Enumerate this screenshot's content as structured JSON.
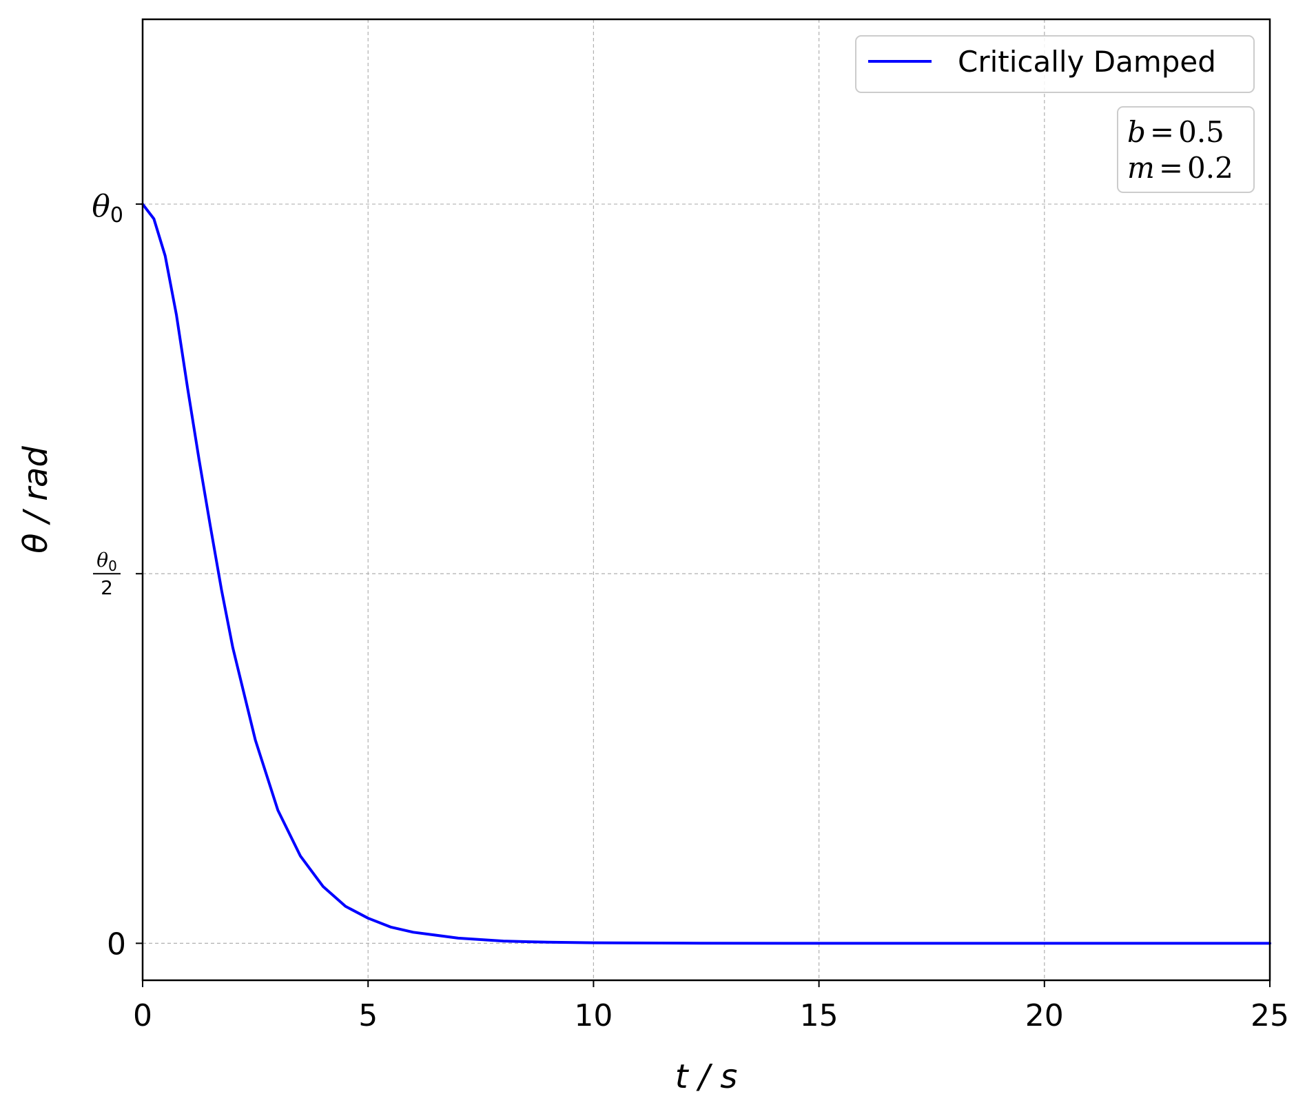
{
  "chart_data": {
    "type": "line",
    "xlabel": "t / s",
    "ylabel": "θ / rad",
    "xlim": [
      0,
      25
    ],
    "ylim": [
      -0.05,
      1.25
    ],
    "x_ticks": [
      "0",
      "5",
      "10",
      "15",
      "20",
      "25"
    ],
    "y_ticks": [
      {
        "value": 0,
        "label": "0"
      },
      {
        "value": 0.5,
        "label": "θ0/2"
      },
      {
        "value": 1,
        "label": "θ0"
      }
    ],
    "grid": true,
    "legend_position": "top-right",
    "series": [
      {
        "name": "Critically Damped",
        "color": "#0000ff",
        "x": [
          0,
          0.25,
          0.5,
          0.75,
          1,
          1.25,
          1.5,
          1.75,
          2,
          2.5,
          3,
          3.5,
          4,
          4.5,
          5,
          5.5,
          6,
          7,
          8,
          9,
          10,
          12,
          15,
          20,
          25
        ],
        "y": [
          1.0,
          0.98,
          0.93,
          0.85,
          0.75,
          0.655,
          0.565,
          0.478,
          0.4,
          0.275,
          0.18,
          0.118,
          0.077,
          0.05,
          0.034,
          0.022,
          0.015,
          0.007,
          0.003,
          0.0015,
          0.0007,
          0.0002,
          0.0,
          0.0,
          0.0
        ]
      }
    ],
    "annotations": [
      {
        "lines": [
          {
            "var": "b",
            "value": "0.5"
          },
          {
            "var": "m",
            "value": "0.2"
          }
        ],
        "position": "top-right"
      }
    ]
  }
}
